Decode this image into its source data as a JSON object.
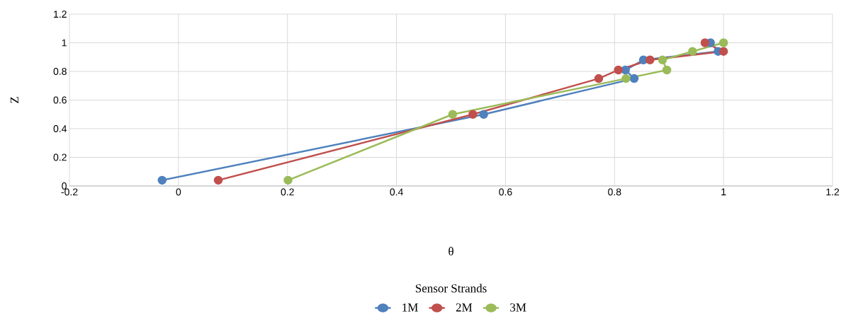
{
  "chart_data": {
    "type": "line",
    "xlabel": "θ",
    "ylabel": "Z",
    "legend_title": "Sensor Strands",
    "series": [
      {
        "name": "1M",
        "color": "#4f81bd",
        "x": [
          -0.03,
          0.56,
          0.836,
          0.82,
          0.853,
          0.99,
          0.976
        ],
        "values": [
          0.04,
          0.5,
          0.75,
          0.81,
          0.88,
          0.94,
          1.0
        ]
      },
      {
        "name": "2M",
        "color": "#c0504d",
        "x": [
          0.073,
          0.54,
          0.771,
          0.807,
          0.865,
          1.0,
          0.966
        ],
        "values": [
          0.04,
          0.5,
          0.75,
          0.81,
          0.88,
          0.94,
          1.0
        ]
      },
      {
        "name": "3M",
        "color": "#9bbb59",
        "x": [
          0.201,
          0.503,
          0.821,
          0.896,
          0.888,
          0.943,
          1.0
        ],
        "values": [
          0.04,
          0.5,
          0.75,
          0.81,
          0.88,
          0.94,
          1.0
        ]
      }
    ],
    "xlim": [
      -0.2,
      1.2
    ],
    "ylim": [
      0,
      1.2
    ],
    "xticks": [
      -0.2,
      0,
      0.2,
      0.4,
      0.6,
      0.8,
      1,
      1.2
    ],
    "yticks": [
      0,
      0.2,
      0.4,
      0.6,
      0.8,
      1,
      1.2
    ],
    "grid": true,
    "legend": "bottom",
    "marker": "circle",
    "line_style": "solid"
  }
}
